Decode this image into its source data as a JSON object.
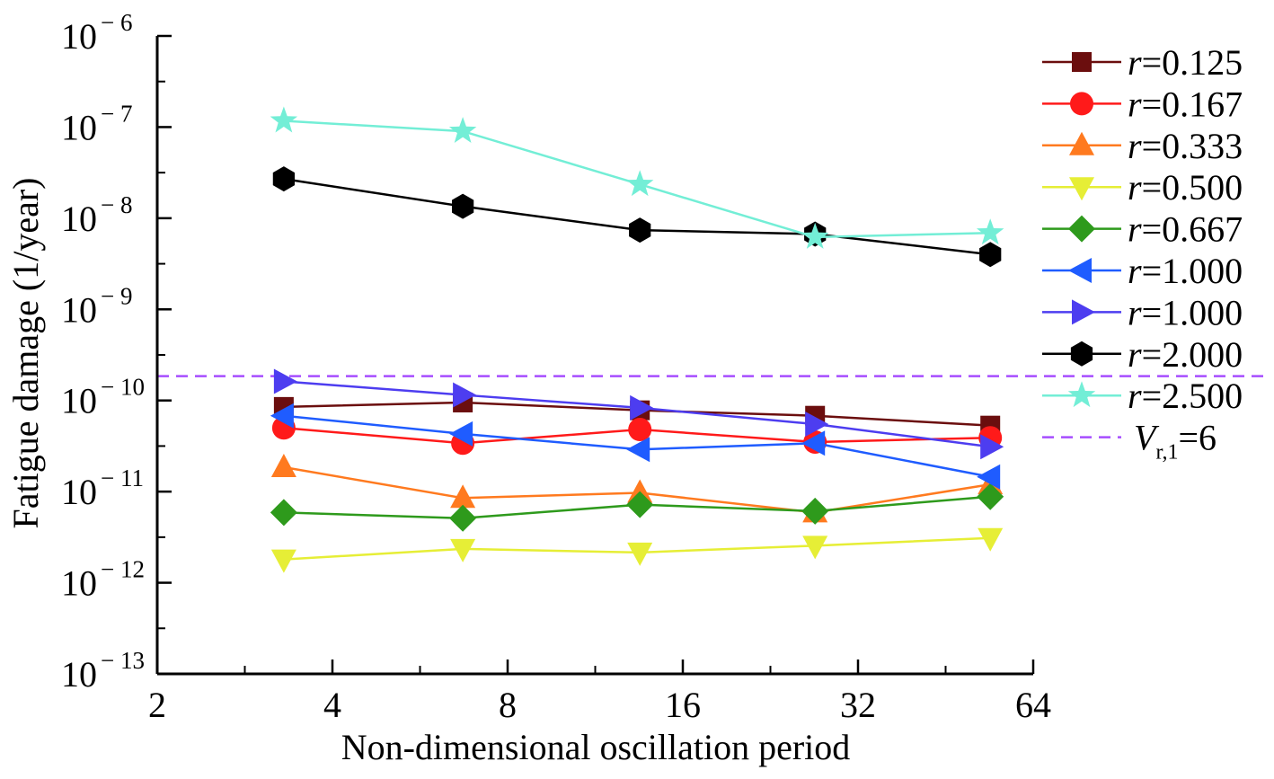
{
  "chart_data": {
    "type": "line",
    "title": "",
    "xlabel": "Non-dimensional oscillation period",
    "ylabel": "Fatigue damage (1/year)",
    "x_scale": "log2",
    "y_scale": "log10",
    "xlim": [
      2,
      64
    ],
    "ylim": [
      1e-13,
      1e-06
    ],
    "x_ticks": [
      {
        "value": 2,
        "label": "2"
      },
      {
        "value": 4,
        "label": "4"
      },
      {
        "value": 8,
        "label": "8"
      },
      {
        "value": 16,
        "label": "16"
      },
      {
        "value": 32,
        "label": "32"
      },
      {
        "value": 64,
        "label": "64"
      }
    ],
    "y_ticks": [
      {
        "value": 1e-13,
        "base": "10",
        "exp": "− 13"
      },
      {
        "value": 1e-12,
        "base": "10",
        "exp": "− 12"
      },
      {
        "value": 1e-11,
        "base": "10",
        "exp": "− 11"
      },
      {
        "value": 1e-10,
        "base": "10",
        "exp": "− 10"
      },
      {
        "value": 1e-09,
        "base": "10",
        "exp": "− 9"
      },
      {
        "value": 1e-08,
        "base": "10",
        "exp": "− 8"
      },
      {
        "value": 1e-07,
        "base": "10",
        "exp": "− 7"
      },
      {
        "value": 1e-06,
        "base": "10",
        "exp": "− 6"
      }
    ],
    "x": [
      3.3,
      6.7,
      13.5,
      27,
      54
    ],
    "legend_position": "right",
    "series": [
      {
        "name_italic": "r",
        "name_rest": "=0.125",
        "color": "#6b0e0e",
        "marker": "square",
        "values": [
          8.5e-11,
          9.5e-11,
          7.8e-11,
          6.8e-11,
          5.3e-11
        ]
      },
      {
        "name_italic": "r",
        "name_rest": "=0.167",
        "color": "#ff1a1a",
        "marker": "circle",
        "values": [
          5e-11,
          3.4e-11,
          4.8e-11,
          3.5e-11,
          3.9e-11
        ]
      },
      {
        "name_italic": "r",
        "name_rest": "=0.333",
        "color": "#ff7a1f",
        "marker": "triangle-up",
        "values": [
          1.85e-11,
          8.5e-12,
          9.7e-12,
          5.9e-12,
          1.2e-11
        ]
      },
      {
        "name_italic": "r",
        "name_rest": "=0.500",
        "color": "#e6ee36",
        "marker": "triangle-down",
        "values": [
          1.8e-12,
          2.35e-12,
          2.15e-12,
          2.55e-12,
          3.1e-12
        ]
      },
      {
        "name_italic": "r",
        "name_rest": "=0.667",
        "color": "#2e9a1c",
        "marker": "diamond",
        "values": [
          5.9e-12,
          5.1e-12,
          7.2e-12,
          6.1e-12,
          8.8e-12
        ]
      },
      {
        "name_italic": "r",
        "name_rest": "=1.000",
        "color": "#1f5cff",
        "marker": "triangle-left",
        "values": [
          6.8e-11,
          4.3e-11,
          2.9e-11,
          3.4e-11,
          1.45e-11
        ]
      },
      {
        "name_italic": "r",
        "name_rest": "=1.000",
        "color": "#4d3df0",
        "marker": "triangle-right",
        "values": [
          1.62e-10,
          1.15e-10,
          8.3e-11,
          5.5e-11,
          3.1e-11
        ]
      },
      {
        "name_italic": "r",
        "name_rest": "=2.000",
        "color": "#000000",
        "marker": "hexagon",
        "values": [
          2.7e-08,
          1.35e-08,
          7.4e-09,
          6.7e-09,
          4e-09
        ]
      },
      {
        "name_italic": "r",
        "name_rest": "=2.500",
        "color": "#73eed6",
        "marker": "star",
        "values": [
          1.17e-07,
          9e-08,
          2.35e-08,
          6.2e-09,
          6.9e-09
        ]
      }
    ],
    "reference_line": {
      "name_italic": "V",
      "name_sub": "r,1",
      "name_rest": "=6",
      "value": 1.85e-10,
      "color": "#a64dff",
      "style": "dashed"
    }
  }
}
